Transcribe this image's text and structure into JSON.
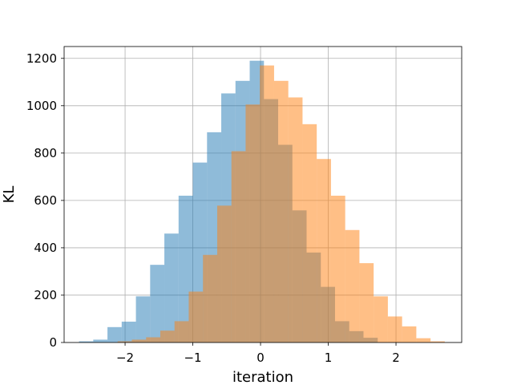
{
  "chart_data": {
    "type": "bar",
    "title": "",
    "xlabel": "iteration",
    "ylabel": "KL",
    "xlim": [
      -2.9,
      2.97
    ],
    "ylim": [
      0,
      1250
    ],
    "grid": true,
    "x_ticks": [
      -2,
      -1,
      0,
      1,
      2
    ],
    "x_tick_labels": [
      "−2",
      "−1",
      "0",
      "1",
      "2"
    ],
    "y_ticks": [
      0,
      200,
      400,
      600,
      800,
      1000,
      1200
    ],
    "y_tick_labels": [
      "0",
      "200",
      "400",
      "600",
      "800",
      "1000",
      "1200"
    ],
    "series": [
      {
        "color": "#1f77b4",
        "alpha": 0.5,
        "bins": [
          {
            "x0": -2.68,
            "x1": -2.47,
            "value": 5
          },
          {
            "x0": -2.47,
            "x1": -2.26,
            "value": 12
          },
          {
            "x0": -2.26,
            "x1": -2.05,
            "value": 65
          },
          {
            "x0": -2.05,
            "x1": -1.84,
            "value": 88
          },
          {
            "x0": -1.84,
            "x1": -1.63,
            "value": 195
          },
          {
            "x0": -1.63,
            "x1": -1.42,
            "value": 328
          },
          {
            "x0": -1.42,
            "x1": -1.21,
            "value": 460
          },
          {
            "x0": -1.21,
            "x1": -1.0,
            "value": 620
          },
          {
            "x0": -1.0,
            "x1": -0.79,
            "value": 760
          },
          {
            "x0": -0.79,
            "x1": -0.58,
            "value": 888
          },
          {
            "x0": -0.58,
            "x1": -0.37,
            "value": 1052
          },
          {
            "x0": -0.37,
            "x1": -0.16,
            "value": 1105
          },
          {
            "x0": -0.16,
            "x1": 0.05,
            "value": 1190
          },
          {
            "x0": 0.05,
            "x1": 0.26,
            "value": 1028
          },
          {
            "x0": 0.26,
            "x1": 0.47,
            "value": 835
          },
          {
            "x0": 0.47,
            "x1": 0.68,
            "value": 558
          },
          {
            "x0": 0.68,
            "x1": 0.89,
            "value": 380
          },
          {
            "x0": 0.89,
            "x1": 1.1,
            "value": 235
          },
          {
            "x0": 1.1,
            "x1": 1.31,
            "value": 90
          },
          {
            "x0": 1.31,
            "x1": 1.52,
            "value": 48
          },
          {
            "x0": 1.52,
            "x1": 1.73,
            "value": 20
          }
        ]
      },
      {
        "color": "#ff7f0e",
        "alpha": 0.5,
        "bins": [
          {
            "x0": -2.11,
            "x1": -1.9,
            "value": 5
          },
          {
            "x0": -1.9,
            "x1": -1.69,
            "value": 12
          },
          {
            "x0": -1.69,
            "x1": -1.48,
            "value": 22
          },
          {
            "x0": -1.48,
            "x1": -1.27,
            "value": 50
          },
          {
            "x0": -1.27,
            "x1": -1.06,
            "value": 90
          },
          {
            "x0": -1.06,
            "x1": -0.85,
            "value": 215
          },
          {
            "x0": -0.85,
            "x1": -0.64,
            "value": 370
          },
          {
            "x0": -0.64,
            "x1": -0.43,
            "value": 578
          },
          {
            "x0": -0.43,
            "x1": -0.22,
            "value": 808
          },
          {
            "x0": -0.22,
            "x1": -0.01,
            "value": 1005
          },
          {
            "x0": -0.01,
            "x1": 0.2,
            "value": 1170
          },
          {
            "x0": 0.2,
            "x1": 0.41,
            "value": 1105
          },
          {
            "x0": 0.41,
            "x1": 0.62,
            "value": 1035
          },
          {
            "x0": 0.62,
            "x1": 0.83,
            "value": 922
          },
          {
            "x0": 0.83,
            "x1": 1.04,
            "value": 775
          },
          {
            "x0": 1.04,
            "x1": 1.25,
            "value": 620
          },
          {
            "x0": 1.25,
            "x1": 1.46,
            "value": 475
          },
          {
            "x0": 1.46,
            "x1": 1.67,
            "value": 335
          },
          {
            "x0": 1.67,
            "x1": 1.88,
            "value": 195
          },
          {
            "x0": 1.88,
            "x1": 2.09,
            "value": 110
          },
          {
            "x0": 2.09,
            "x1": 2.3,
            "value": 68
          },
          {
            "x0": 2.3,
            "x1": 2.51,
            "value": 18
          },
          {
            "x0": 2.51,
            "x1": 2.72,
            "value": 5
          }
        ]
      }
    ]
  }
}
